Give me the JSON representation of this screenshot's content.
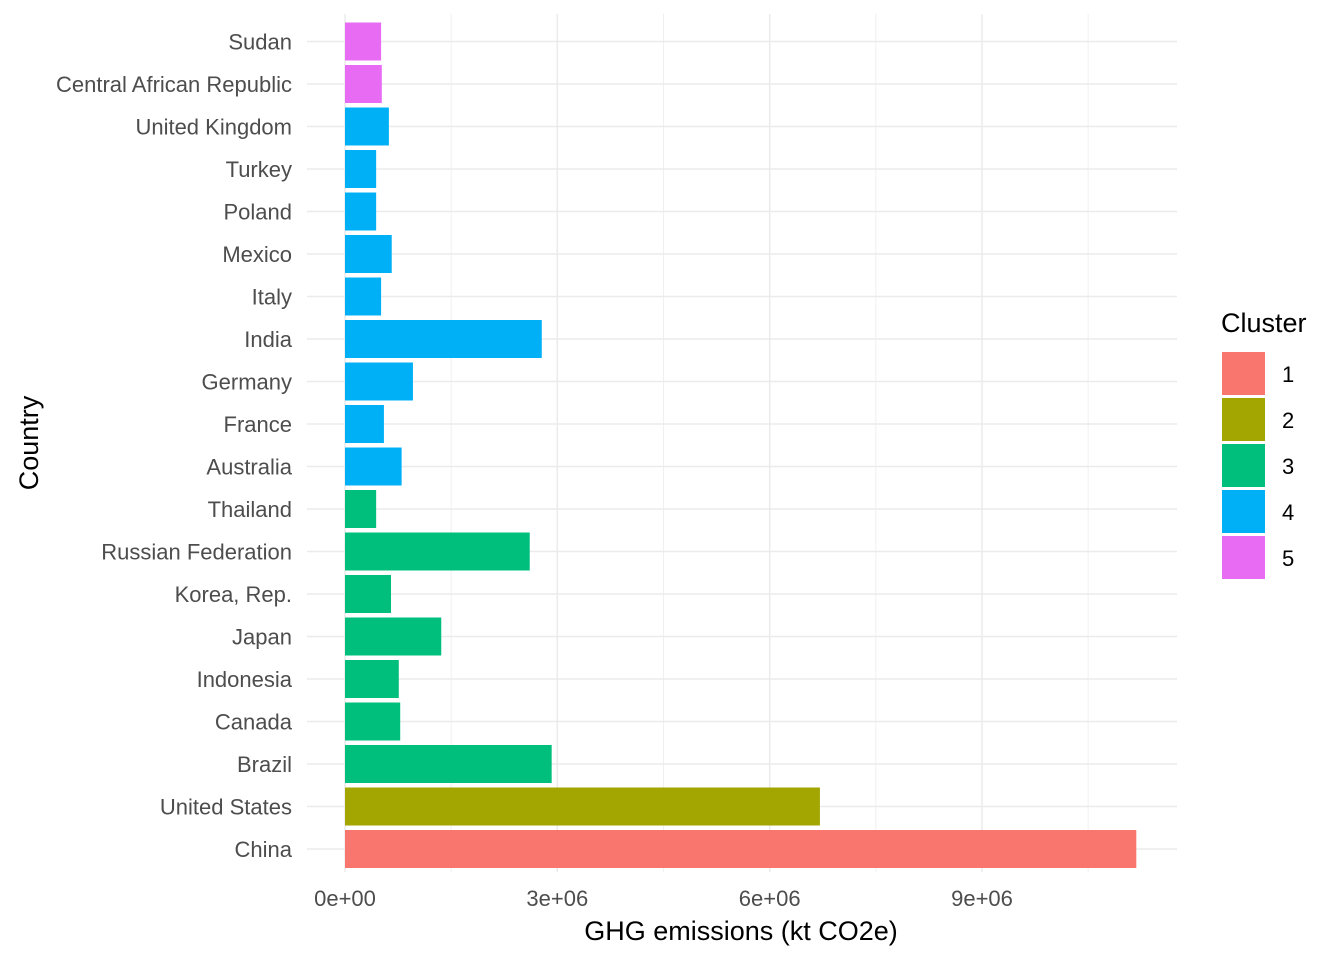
{
  "chart_data": {
    "type": "bar",
    "orientation": "horizontal",
    "title": "",
    "xlabel": "GHG emissions (kt CO2e)",
    "ylabel": "Country",
    "xlim": [
      0,
      11700000
    ],
    "x_ticks": [
      0,
      3000000,
      6000000,
      9000000
    ],
    "x_tick_labels": [
      "0e+00",
      "3e+06",
      "6e+06",
      "9e+06"
    ],
    "grid": true,
    "legend": {
      "title": "Cluster",
      "placement": "right",
      "entries": [
        {
          "label": "1",
          "color": "#F8766D"
        },
        {
          "label": "2",
          "color": "#A3A500"
        },
        {
          "label": "3",
          "color": "#00BF7D"
        },
        {
          "label": "4",
          "color": "#00B0F6"
        },
        {
          "label": "5",
          "color": "#E76BF3"
        }
      ]
    },
    "categories": [
      "China",
      "United States",
      "Brazil",
      "Canada",
      "Indonesia",
      "Japan",
      "Korea, Rep.",
      "Russian Federation",
      "Thailand",
      "Australia",
      "France",
      "Germany",
      "India",
      "Italy",
      "Mexico",
      "Poland",
      "Turkey",
      "United Kingdom",
      "Central African Republic",
      "Sudan"
    ],
    "values": [
      11180000,
      6710000,
      2920000,
      780000,
      760000,
      1360000,
      650000,
      2610000,
      440000,
      800000,
      550000,
      960000,
      2780000,
      510000,
      660000,
      440000,
      440000,
      620000,
      520000,
      510000
    ],
    "clusters": [
      "1",
      "2",
      "3",
      "3",
      "3",
      "3",
      "3",
      "3",
      "3",
      "4",
      "4",
      "4",
      "4",
      "4",
      "4",
      "4",
      "4",
      "4",
      "5",
      "5"
    ]
  }
}
